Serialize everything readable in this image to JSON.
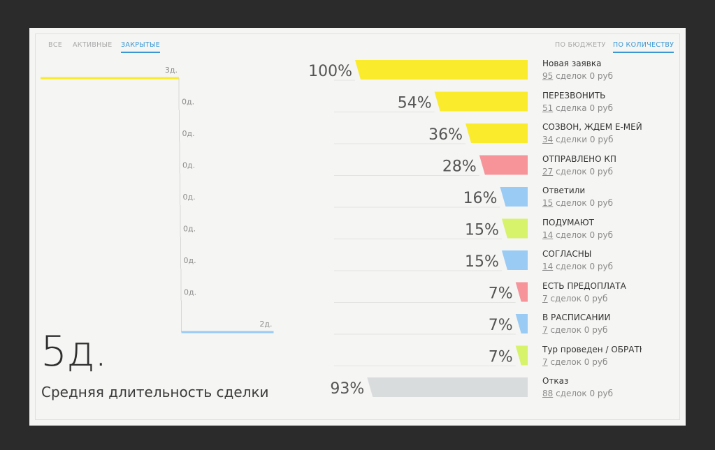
{
  "tabs_left": [
    {
      "label": "ВСЕ",
      "active": false
    },
    {
      "label": "АКТИВНЫЕ",
      "active": false
    },
    {
      "label": "ЗАКРЫТЫЕ",
      "active": true
    }
  ],
  "tabs_right": [
    {
      "label": "ПО БЮДЖЕТУ",
      "active": false
    },
    {
      "label": "ПО КОЛИЧЕСТВУ",
      "active": true
    }
  ],
  "summary": {
    "value": "5д.",
    "label": "Средняя длительность сделки"
  },
  "colors": {
    "yellow": "#faeb2c",
    "red": "#f6949a",
    "blue": "#99cbf4",
    "green": "#d6f36b",
    "grey": "#d9dcdd",
    "accent": "#3b97d3"
  },
  "chart_data": {
    "type": "bar",
    "categories": [
      "Новая заявка",
      "ПЕРЕЗВОНИТЬ",
      "СОЗВОН, ЖДЕМ Е-МЕЙЛ",
      "ОТПРАВЛЕНО КП",
      "Ответили",
      "ПОДУМАЮТ",
      "СОГЛАСНЫ",
      "ЕСТЬ ПРЕДОПЛАТА",
      "В РАСПИСАНИИ",
      "Тур проведен / ОБРАТНА",
      "Отказ"
    ],
    "series": [
      {
        "values": [
          100,
          54,
          36,
          28,
          16,
          15,
          15,
          7,
          7,
          7,
          93
        ]
      }
    ],
    "percent_labels": [
      "100%",
      "54%",
      "36%",
      "28%",
      "16%",
      "15%",
      "15%",
      "7%",
      "7%",
      "7%",
      "93%"
    ],
    "deal_counts": [
      "95",
      "51",
      "34",
      "27",
      "15",
      "14",
      "14",
      "7",
      "7",
      "7",
      "88"
    ],
    "deal_suffix": [
      " сделок 0 руб",
      " сделка 0 руб",
      " сделки 0 руб",
      " сделок 0 руб",
      " сделок 0 руб",
      " сделок 0 руб",
      " сделок 0 руб",
      " сделок 0 руб",
      " сделок 0 руб",
      " сделок 0 руб",
      " сделок 0 руб"
    ],
    "bar_colors": [
      "yellow",
      "yellow",
      "yellow",
      "red",
      "blue",
      "green",
      "blue",
      "red",
      "blue",
      "green",
      "grey"
    ],
    "durations": [
      3,
      0,
      0,
      0,
      0,
      0,
      0,
      0,
      2,
      null,
      null
    ],
    "duration_labels": [
      "3д.",
      "0д.",
      "0д.",
      "0д.",
      "0д.",
      "0д.",
      "0д.",
      "0д.",
      "2д.",
      "",
      ""
    ],
    "duration_colors": [
      "yellow",
      "grey",
      "grey",
      "grey",
      "grey",
      "grey",
      "grey",
      "grey",
      "blue",
      "grey",
      "grey"
    ],
    "xlim": [
      0,
      100
    ]
  }
}
